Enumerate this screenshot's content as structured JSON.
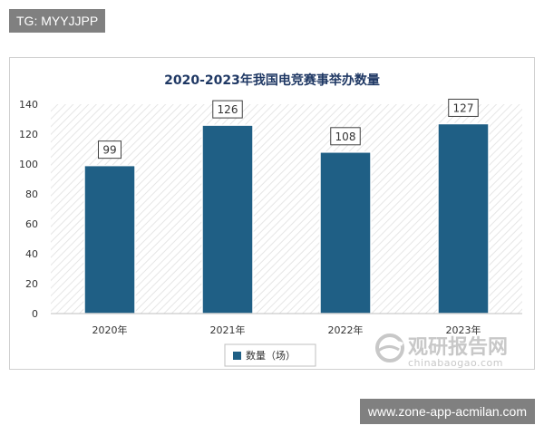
{
  "tag_top": "TG: MYYJJPP",
  "tag_bottom": "www.zone-app-acmilan.com",
  "watermark": {
    "main": "观研报告网",
    "sub": "chinabaogao.com"
  },
  "colors": {
    "bar": "#1f5f85",
    "bar_border": "#ffffff",
    "title": "#1f3864",
    "hatch": "#e6e6e6"
  },
  "chart_data": {
    "type": "bar",
    "title": "2020-2023年我国电竞赛事举办数量",
    "categories": [
      "2020年",
      "2021年",
      "2022年",
      "2023年"
    ],
    "series": [
      {
        "name": "数量（场）",
        "values": [
          99,
          126,
          108,
          127
        ]
      }
    ],
    "data_labels": [
      "99",
      "126",
      "108",
      "127"
    ],
    "ylim": [
      0,
      140
    ],
    "yticks": [
      0,
      20,
      40,
      60,
      80,
      100,
      120,
      140
    ],
    "xlabel": "",
    "ylabel": "",
    "legend_position": "bottom",
    "grid": false
  }
}
